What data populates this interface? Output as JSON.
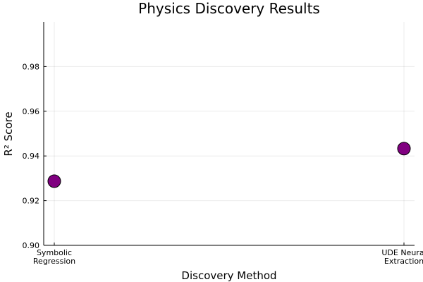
{
  "chart_data": {
    "type": "scatter",
    "title": "Physics Discovery Results",
    "xlabel": "Discovery Method",
    "ylabel": "R² Score",
    "categories": [
      [
        "Symbolic",
        "Regression"
      ],
      [
        "UDE Neural",
        "Extraction"
      ]
    ],
    "values": [
      0.9287,
      0.9433
    ],
    "ylim": [
      0.9,
      1.0
    ],
    "yticks": [
      0.9,
      0.92,
      0.94,
      0.96,
      0.98
    ],
    "ytick_labels": [
      "0.90",
      "0.92",
      "0.94",
      "0.96",
      "0.98"
    ],
    "grid": true,
    "legend": "none",
    "marker_color": "#800080"
  }
}
